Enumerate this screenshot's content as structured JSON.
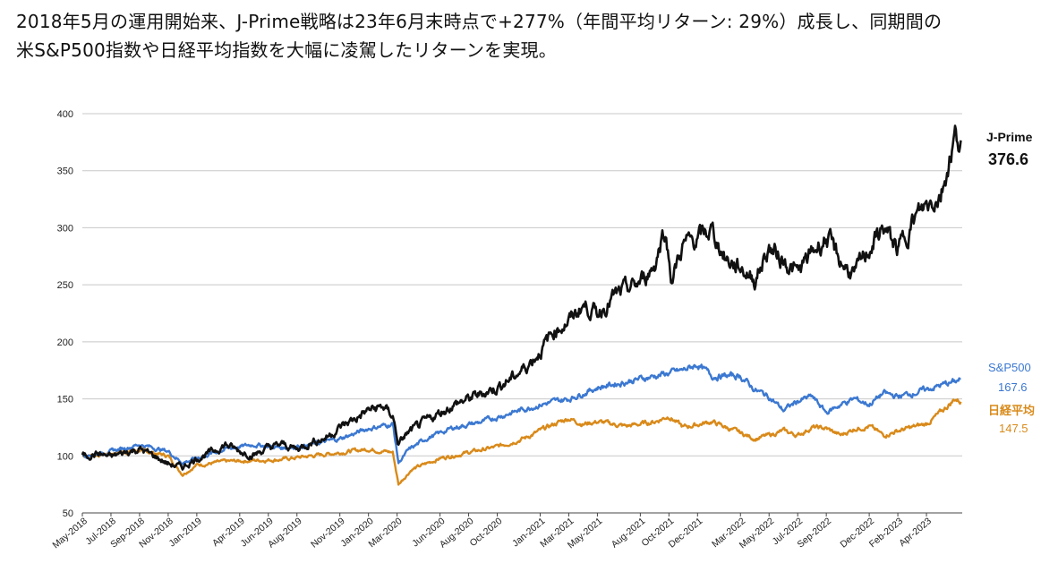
{
  "headline": {
    "line1": "2018年5月の運用開始来、J-Prime戦略は23年6月末時点で+277%（年間平均リターン: 29%）成長し、同期間の",
    "line2": "米S&P500指数や日経平均指数を大幅に凌駕したリターンを実現。"
  },
  "colors": {
    "jprime": "#111111",
    "sp500": "#3b78d1",
    "nikkei": "#d98a1a",
    "grid": "#c8c8c8"
  },
  "chart_data": {
    "type": "line",
    "title": "",
    "xlabel": "",
    "ylabel": "",
    "ylim": [
      50,
      400
    ],
    "yticks": [
      50,
      100,
      150,
      200,
      250,
      300,
      350,
      400
    ],
    "grid": true,
    "x_tick_labels": [
      "May-2018",
      "Jul-2018",
      "Sep-2018",
      "Nov-2018",
      "Jan-2019",
      "Apr-2019",
      "Jun-2019",
      "Aug-2019",
      "Nov-2019",
      "Jan-2020",
      "Mar-2020",
      "Jun-2020",
      "Aug-2020",
      "Oct-2020",
      "Jan-2021",
      "Mar-2021",
      "May-2021",
      "Aug-2021",
      "Oct-2021",
      "Dec-2021",
      "Mar-2022",
      "May-2022",
      "Jul-2022",
      "Sep-2022",
      "Dec-2022",
      "Feb-2023",
      "Apr-2023"
    ],
    "x_months": [
      0,
      2,
      4,
      6,
      8,
      11,
      13,
      15,
      18,
      20,
      22,
      25,
      27,
      29,
      32,
      34,
      36,
      39,
      41,
      43,
      46,
      48,
      50,
      52,
      55,
      57,
      59
    ],
    "x_range_months": [
      0,
      61.5
    ],
    "series": [
      {
        "name": "J-Prime",
        "label": "J-Prime",
        "end_value_label": "376.6",
        "points": [
          [
            0,
            100
          ],
          [
            1,
            102
          ],
          [
            2,
            99
          ],
          [
            3,
            103
          ],
          [
            4,
            106
          ],
          [
            5,
            100
          ],
          [
            6,
            93
          ],
          [
            7,
            90
          ],
          [
            8,
            98
          ],
          [
            9,
            103
          ],
          [
            10,
            110
          ],
          [
            11,
            104
          ],
          [
            12,
            101
          ],
          [
            13,
            107
          ],
          [
            14,
            110
          ],
          [
            15,
            106
          ],
          [
            16,
            112
          ],
          [
            17,
            116
          ],
          [
            18,
            125
          ],
          [
            19,
            132
          ],
          [
            20,
            140
          ],
          [
            21,
            143
          ],
          [
            21.7,
            135
          ],
          [
            22.1,
            110
          ],
          [
            22.6,
            118
          ],
          [
            23,
            122
          ],
          [
            24,
            130
          ],
          [
            25,
            138
          ],
          [
            26,
            145
          ],
          [
            27,
            150
          ],
          [
            28,
            155
          ],
          [
            29,
            160
          ],
          [
            30,
            168
          ],
          [
            31,
            178
          ],
          [
            32,
            192
          ],
          [
            33,
            210
          ],
          [
            34,
            218
          ],
          [
            35,
            232
          ],
          [
            36,
            225
          ],
          [
            37,
            238
          ],
          [
            38,
            245
          ],
          [
            39,
            252
          ],
          [
            40,
            268
          ],
          [
            40.7,
            300
          ],
          [
            41.2,
            255
          ],
          [
            42,
            285
          ],
          [
            43,
            290
          ],
          [
            44,
            298
          ],
          [
            45,
            272
          ],
          [
            46,
            265
          ],
          [
            47,
            255
          ],
          [
            48,
            282
          ],
          [
            49,
            272
          ],
          [
            50,
            260
          ],
          [
            51,
            278
          ],
          [
            52,
            292
          ],
          [
            53,
            270
          ],
          [
            54,
            258
          ],
          [
            55,
            282
          ],
          [
            56,
            300
          ],
          [
            57,
            280
          ],
          [
            58,
            305
          ],
          [
            59,
            320
          ],
          [
            60,
            330
          ],
          [
            61,
            380
          ],
          [
            61.4,
            376.6
          ]
        ]
      },
      {
        "name": "S&P500",
        "label": "S&P500",
        "end_value_label": "167.6",
        "points": [
          [
            0,
            100
          ],
          [
            2,
            104
          ],
          [
            4,
            110
          ],
          [
            6,
            104
          ],
          [
            7,
            94
          ],
          [
            8,
            98
          ],
          [
            10,
            106
          ],
          [
            12,
            110
          ],
          [
            14,
            107
          ],
          [
            16,
            110
          ],
          [
            18,
            115
          ],
          [
            20,
            124
          ],
          [
            21.7,
            128
          ],
          [
            22.1,
            94
          ],
          [
            22.8,
            105
          ],
          [
            24,
            115
          ],
          [
            26,
            125
          ],
          [
            28,
            130
          ],
          [
            30,
            138
          ],
          [
            32,
            145
          ],
          [
            34,
            150
          ],
          [
            36,
            160
          ],
          [
            38,
            165
          ],
          [
            40,
            170
          ],
          [
            42,
            175
          ],
          [
            43,
            180
          ],
          [
            44,
            170
          ],
          [
            46,
            170
          ],
          [
            47,
            158
          ],
          [
            48,
            152
          ],
          [
            49,
            140
          ],
          [
            50,
            148
          ],
          [
            51,
            152
          ],
          [
            52,
            138
          ],
          [
            53,
            145
          ],
          [
            54,
            150
          ],
          [
            55,
            145
          ],
          [
            56,
            155
          ],
          [
            57,
            152
          ],
          [
            58,
            155
          ],
          [
            59,
            158
          ],
          [
            60,
            162
          ],
          [
            61,
            165
          ],
          [
            61.4,
            167.6
          ]
        ]
      },
      {
        "name": "日経平均",
        "label": "日経平均",
        "end_value_label": "147.5",
        "points": [
          [
            0,
            100
          ],
          [
            2,
            102
          ],
          [
            4,
            105
          ],
          [
            6,
            100
          ],
          [
            7,
            84
          ],
          [
            8,
            92
          ],
          [
            10,
            95
          ],
          [
            12,
            96
          ],
          [
            14,
            97
          ],
          [
            16,
            100
          ],
          [
            18,
            103
          ],
          [
            20,
            106
          ],
          [
            21.7,
            103
          ],
          [
            22.1,
            75
          ],
          [
            23,
            88
          ],
          [
            25,
            98
          ],
          [
            27,
            103
          ],
          [
            29,
            108
          ],
          [
            31,
            116
          ],
          [
            33,
            128
          ],
          [
            34,
            133
          ],
          [
            35,
            128
          ],
          [
            36,
            130
          ],
          [
            38,
            126
          ],
          [
            40,
            130
          ],
          [
            41,
            135
          ],
          [
            42,
            125
          ],
          [
            44,
            130
          ],
          [
            46,
            120
          ],
          [
            47,
            115
          ],
          [
            48,
            118
          ],
          [
            49,
            122
          ],
          [
            50,
            118
          ],
          [
            51,
            125
          ],
          [
            52,
            124
          ],
          [
            53,
            118
          ],
          [
            54,
            124
          ],
          [
            55,
            126
          ],
          [
            56,
            118
          ],
          [
            57,
            122
          ],
          [
            58,
            125
          ],
          [
            59,
            128
          ],
          [
            60,
            138
          ],
          [
            61,
            150
          ],
          [
            61.4,
            147.5
          ]
        ]
      }
    ]
  }
}
